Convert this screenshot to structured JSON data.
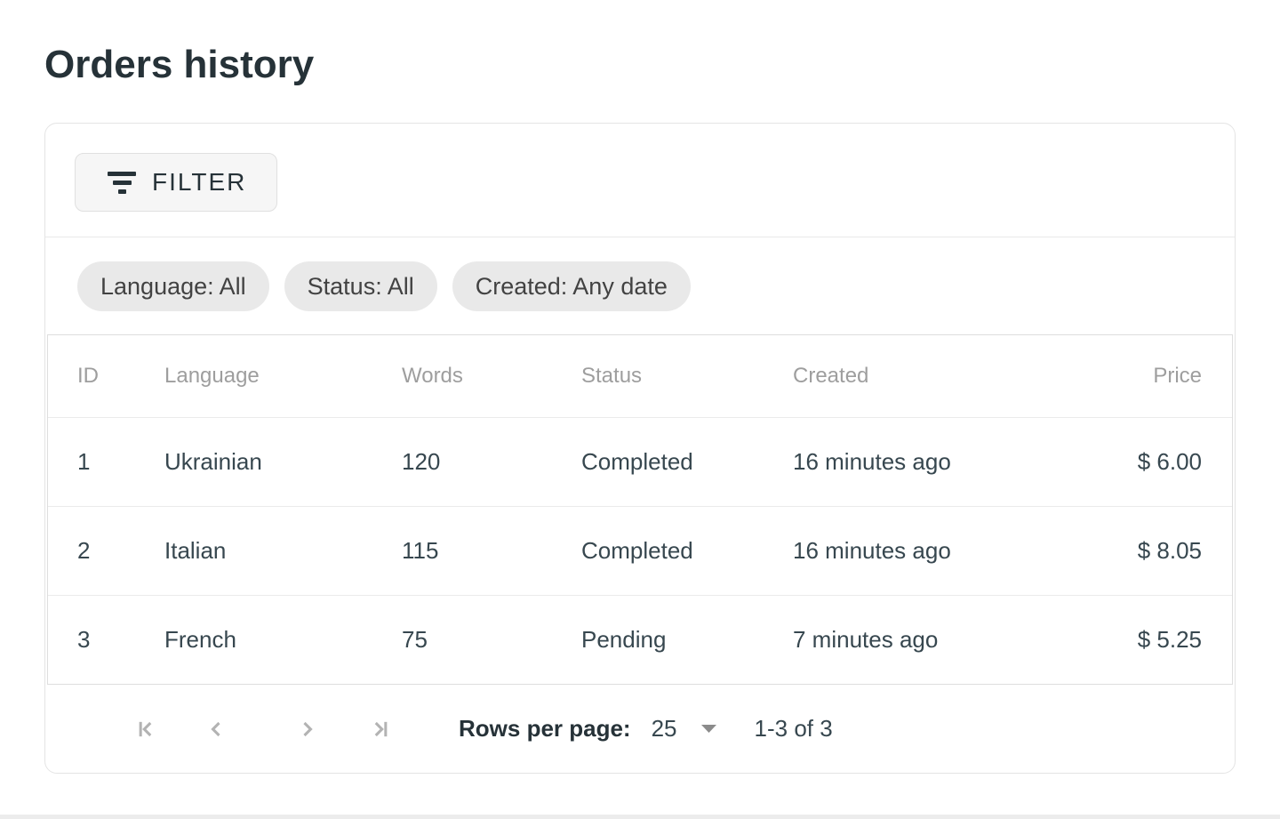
{
  "page": {
    "title": "Orders history"
  },
  "toolbar": {
    "filter_label": "FILTER",
    "filter_icon": "filter-list-icon"
  },
  "filters": {
    "chips": [
      {
        "label": "Language: All"
      },
      {
        "label": "Status: All"
      },
      {
        "label": "Created: Any date"
      }
    ]
  },
  "table": {
    "columns": [
      "ID",
      "Language",
      "Words",
      "Status",
      "Created",
      "Price"
    ],
    "rows": [
      {
        "id": "1",
        "language": "Ukrainian",
        "words": "120",
        "status": "Completed",
        "status_key": "completed",
        "created": "16 minutes ago",
        "price": "$ 6.00"
      },
      {
        "id": "2",
        "language": "Italian",
        "words": "115",
        "status": "Completed",
        "status_key": "completed",
        "created": "16 minutes ago",
        "price": "$ 8.05"
      },
      {
        "id": "3",
        "language": "French",
        "words": "75",
        "status": "Pending",
        "status_key": "pending",
        "created": "7 minutes ago",
        "price": "$ 5.25"
      }
    ]
  },
  "pagination": {
    "rows_per_page_label": "Rows per page:",
    "rows_per_page_value": "25",
    "range_label": "1-3 of 3",
    "icons": [
      "first-page-icon",
      "previous-page-icon",
      "next-page-icon",
      "last-page-icon",
      "dropdown-arrow-icon"
    ]
  },
  "colors": {
    "pending": "#FFC107",
    "body_text": "#37474F",
    "heading_text": "#263238",
    "muted_header_text": "#9e9e9e",
    "chip_background": "#e9e9e9",
    "icon_gray": "#b3b3b3"
  }
}
